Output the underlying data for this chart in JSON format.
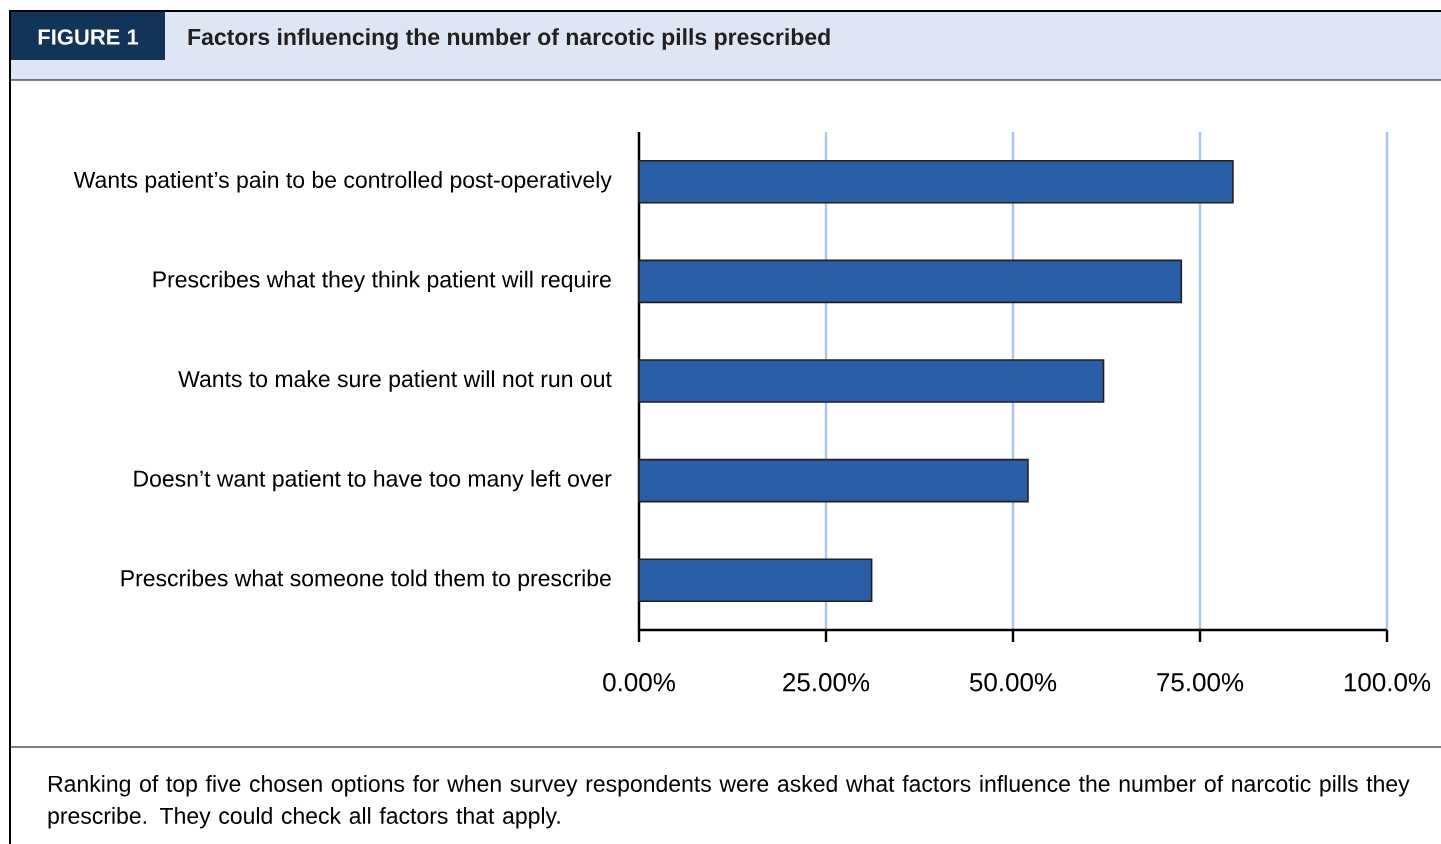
{
  "chart_data": {
    "type": "bar",
    "orientation": "horizontal",
    "title": "Factors influencing the number of narcotic pills prescribed",
    "annotations": [
      "FIGURE 1",
      "Ranking of top five chosen options for when survey respondents were asked what factors influence the number of narcotic pills they prescribe.  They could check all factors that apply."
    ],
    "categories": [
      "Wants patient’s pain to be controlled post-operatively",
      "Prescribes what they think patient will require",
      "Wants to make sure patient will not run out",
      "Doesn’t want patient to have too many left over",
      "Prescribes what someone told them to prescribe"
    ],
    "values": [
      79.4,
      72.5,
      62.1,
      52.0,
      31.1
    ],
    "color": "#2a5fa8",
    "xlim": [
      0,
      100
    ],
    "xticks": [
      {
        "value": 0,
        "label": "0.00%"
      },
      {
        "value": 25,
        "label": "25.00%"
      },
      {
        "value": 50,
        "label": "50.00%"
      },
      {
        "value": 75,
        "label": "75.00%"
      },
      {
        "value": 100,
        "label": "100.0%"
      }
    ],
    "grid": "x"
  }
}
